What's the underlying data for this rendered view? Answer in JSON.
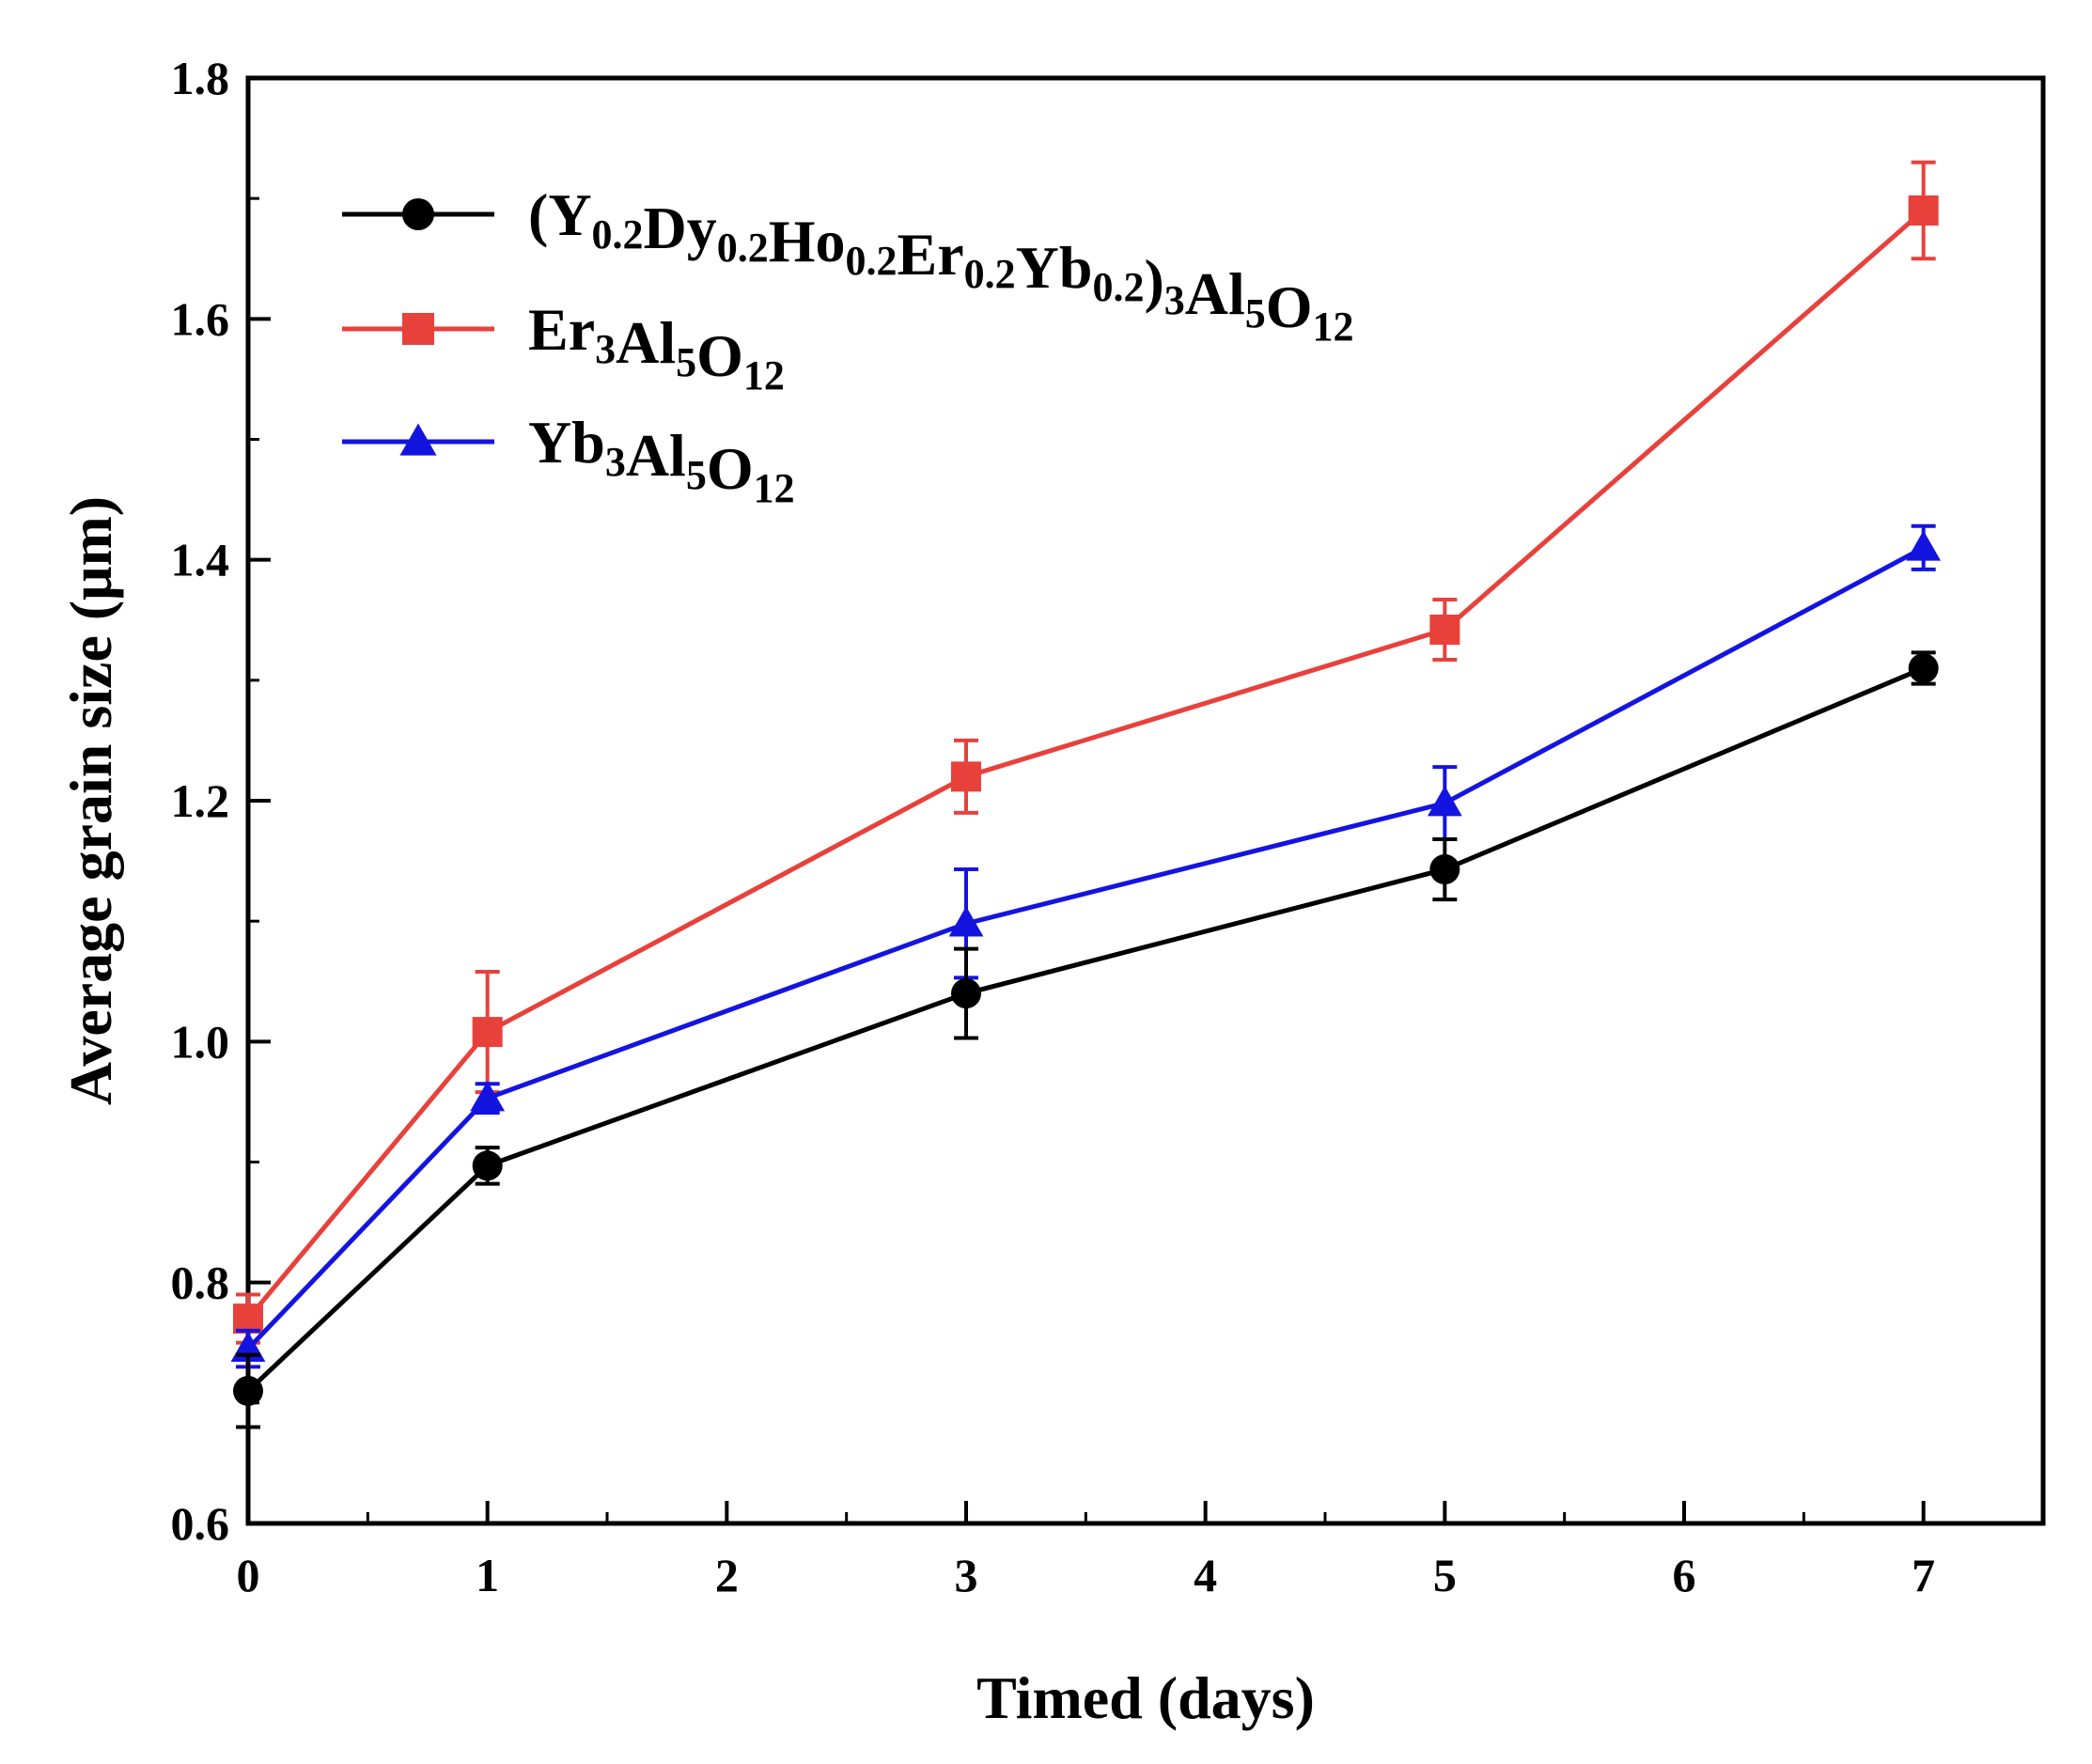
{
  "chart_data": {
    "type": "line",
    "xlabel": "Timed (days)",
    "ylabel": "Average grain size (μm)",
    "xlim": [
      0,
      7.5
    ],
    "ylim": [
      0.6,
      1.8
    ],
    "x_ticks": [
      "0",
      "1",
      "2",
      "3",
      "4",
      "5",
      "6",
      "7"
    ],
    "y_ticks": [
      "0.6",
      "0.8",
      "1.0",
      "1.2",
      "1.4",
      "1.6",
      "1.8"
    ],
    "grid": false,
    "legend_position": "top-left",
    "x": [
      0,
      1,
      3,
      5,
      7
    ],
    "series": [
      {
        "name": "(Y0.2Dy0.2Ho0.2Er0.2Yb0.2)3Al5O12",
        "legend_parts": [
          [
            "(Y",
            ""
          ],
          [
            "0.2",
            "sub"
          ],
          [
            "Dy",
            ""
          ],
          [
            "0.2",
            "sub"
          ],
          [
            "Ho",
            ""
          ],
          [
            "0.2",
            "sub"
          ],
          [
            "Er",
            ""
          ],
          [
            "0.2",
            "sub"
          ],
          [
            "Yb",
            ""
          ],
          [
            "0.2",
            "sub"
          ],
          [
            ")",
            ""
          ],
          [
            "3",
            "sub"
          ],
          [
            "Al",
            ""
          ],
          [
            "5",
            "sub"
          ],
          [
            "O",
            ""
          ],
          [
            "12",
            "sub"
          ]
        ],
        "color": "#000000",
        "marker": "circle",
        "values": [
          0.71,
          0.897,
          1.04,
          1.143,
          1.31
        ],
        "errors": [
          0.03,
          0.015,
          0.037,
          0.025,
          0.013
        ]
      },
      {
        "name": "Er3Al5O12",
        "legend_parts": [
          [
            "Er",
            ""
          ],
          [
            "3",
            "sub"
          ],
          [
            "Al",
            ""
          ],
          [
            "5",
            "sub"
          ],
          [
            "O",
            ""
          ],
          [
            "12",
            "sub"
          ]
        ],
        "color": "#e8413c",
        "marker": "square",
        "values": [
          0.77,
          1.008,
          1.22,
          1.342,
          1.69
        ],
        "errors": [
          0.02,
          0.05,
          0.03,
          0.025,
          0.04
        ]
      },
      {
        "name": "Yb3Al5O12",
        "legend_parts": [
          [
            "Yb",
            ""
          ],
          [
            "3",
            "sub"
          ],
          [
            "Al",
            ""
          ],
          [
            "5",
            "sub"
          ],
          [
            "O",
            ""
          ],
          [
            "12",
            "sub"
          ]
        ],
        "color": "#1414e0",
        "marker": "triangle",
        "values": [
          0.745,
          0.953,
          1.098,
          1.198,
          1.41
        ],
        "errors": [
          0.015,
          0.012,
          0.045,
          0.03,
          0.018
        ]
      }
    ]
  }
}
